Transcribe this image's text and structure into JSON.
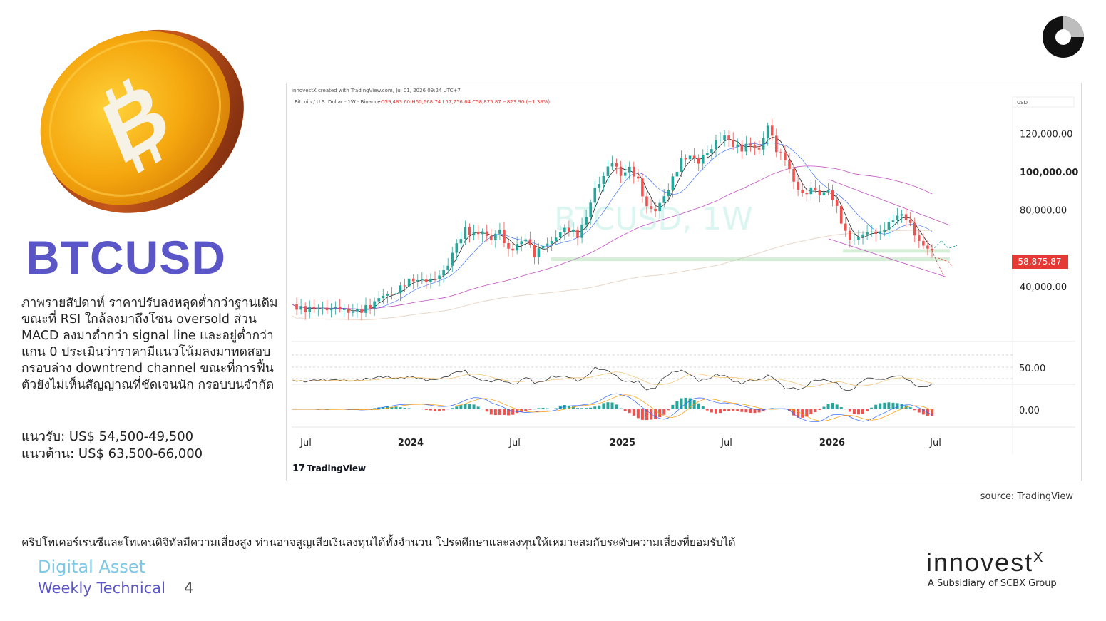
{
  "ticker": "BTCUSD",
  "description": "ภาพรายสัปดาห์ ราคาปรับลงหลุดต่ำกว่าฐานเดิม ขณะที่ RSI ใกล้ลงมาถึงโซน oversold ส่วน MACD ลงมาต่ำกว่า signal line และอยู่ต่ำกว่าแกน 0 ประเมินว่าราคามีแนวโน้มลงมาทดสอบกรอบล่าง downtrend channel ขณะที่การฟื้นตัวยังไม่เห็นสัญญาณที่ชัดเจนนัก กรอบบนจำกัด",
  "support": "แนวรับ: US$ 54,500-49,500",
  "resistance": "แนวต้าน: US$ 63,500-66,000",
  "source": "source: TradingView",
  "disclaimer": "คริปโทเคอร์เรนซีและโทเคนดิจิทัลมีความเสี่ยงสูง ท่านอาจสูญเสียเงินลงทุนได้ทั้งจำนวน โปรดศึกษาและลงทุนให้เหมาะสมกับระดับความเสี่ยงที่ยอมรับได้",
  "footer": {
    "section": "Digital Asset",
    "subtitle": "Weekly Technical",
    "page": "4"
  },
  "brand": {
    "name": "innovest",
    "x": "X",
    "sub": "A Subsidiary of SCBX Group"
  },
  "colors": {
    "ticker": "#5b56c7",
    "up": "#26a69a",
    "down": "#ef5350",
    "price_tag": "#e53935",
    "digital_asset": "#7cc8e8",
    "weekly": "#5b56c7"
  },
  "chart_data": {
    "type": "candlestick",
    "header_line": "innovestX created with TradingView.com, Jul 01, 2026 09:24 UTC+7",
    "symbol_line": "Bitcoin / U.S. Dollar · 1W · Binance",
    "ohlc_line": "O59,483.60 H60,668.74 L57,756.64 C58,875.87 −823.90 (−1.38%)",
    "currency": "USD",
    "watermark": "BTCUSD, 1W",
    "last_price": "58,875.87",
    "y_ticks": [
      "120,000.00",
      "100,000.00",
      "80,000.00",
      "40,000.00"
    ],
    "ylim": [
      15000,
      135000
    ],
    "rsi_tick": "50.00",
    "macd_tick": "0.00",
    "x_ticks": [
      {
        "label": "Jul",
        "bold": false
      },
      {
        "label": "2024",
        "bold": true
      },
      {
        "label": "Jul",
        "bold": false
      },
      {
        "label": "2025",
        "bold": true
      },
      {
        "label": "Jul",
        "bold": false
      },
      {
        "label": "2026",
        "bold": true
      },
      {
        "label": "Jul",
        "bold": false
      }
    ],
    "price_path": [
      [
        0,
        29500
      ],
      [
        8,
        29000
      ],
      [
        12,
        26500
      ],
      [
        16,
        27000
      ],
      [
        20,
        35000
      ],
      [
        24,
        37500
      ],
      [
        28,
        43000
      ],
      [
        32,
        42500
      ],
      [
        36,
        52000
      ],
      [
        38,
        63000
      ],
      [
        40,
        70000
      ],
      [
        42,
        66000
      ],
      [
        44,
        68000
      ],
      [
        46,
        64000
      ],
      [
        48,
        69000
      ],
      [
        50,
        60000
      ],
      [
        52,
        62000
      ],
      [
        54,
        66000
      ],
      [
        56,
        57000
      ],
      [
        58,
        60000
      ],
      [
        60,
        63000
      ],
      [
        62,
        68000
      ],
      [
        64,
        70000
      ],
      [
        66,
        68000
      ],
      [
        68,
        77000
      ],
      [
        70,
        92000
      ],
      [
        72,
        98000
      ],
      [
        74,
        104000
      ],
      [
        76,
        98000
      ],
      [
        78,
        101000
      ],
      [
        80,
        95000
      ],
      [
        82,
        83000
      ],
      [
        84,
        80000
      ],
      [
        86,
        88000
      ],
      [
        88,
        96000
      ],
      [
        90,
        105000
      ],
      [
        92,
        108000
      ],
      [
        94,
        104000
      ],
      [
        96,
        110000
      ],
      [
        98,
        117000
      ],
      [
        100,
        119000
      ],
      [
        102,
        115000
      ],
      [
        104,
        112000
      ],
      [
        106,
        113000
      ],
      [
        108,
        111000
      ],
      [
        110,
        123000
      ],
      [
        112,
        112000
      ],
      [
        114,
        108000
      ],
      [
        116,
        95000
      ],
      [
        118,
        89000
      ],
      [
        120,
        91000
      ],
      [
        122,
        87000
      ],
      [
        124,
        90000
      ],
      [
        126,
        80000
      ],
      [
        128,
        68000
      ],
      [
        130,
        65000
      ],
      [
        132,
        68000
      ],
      [
        134,
        70000
      ],
      [
        136,
        67000
      ],
      [
        138,
        72000
      ],
      [
        140,
        77000
      ],
      [
        142,
        75000
      ],
      [
        144,
        68000
      ],
      [
        146,
        62000
      ],
      [
        148,
        58876
      ]
    ]
  }
}
